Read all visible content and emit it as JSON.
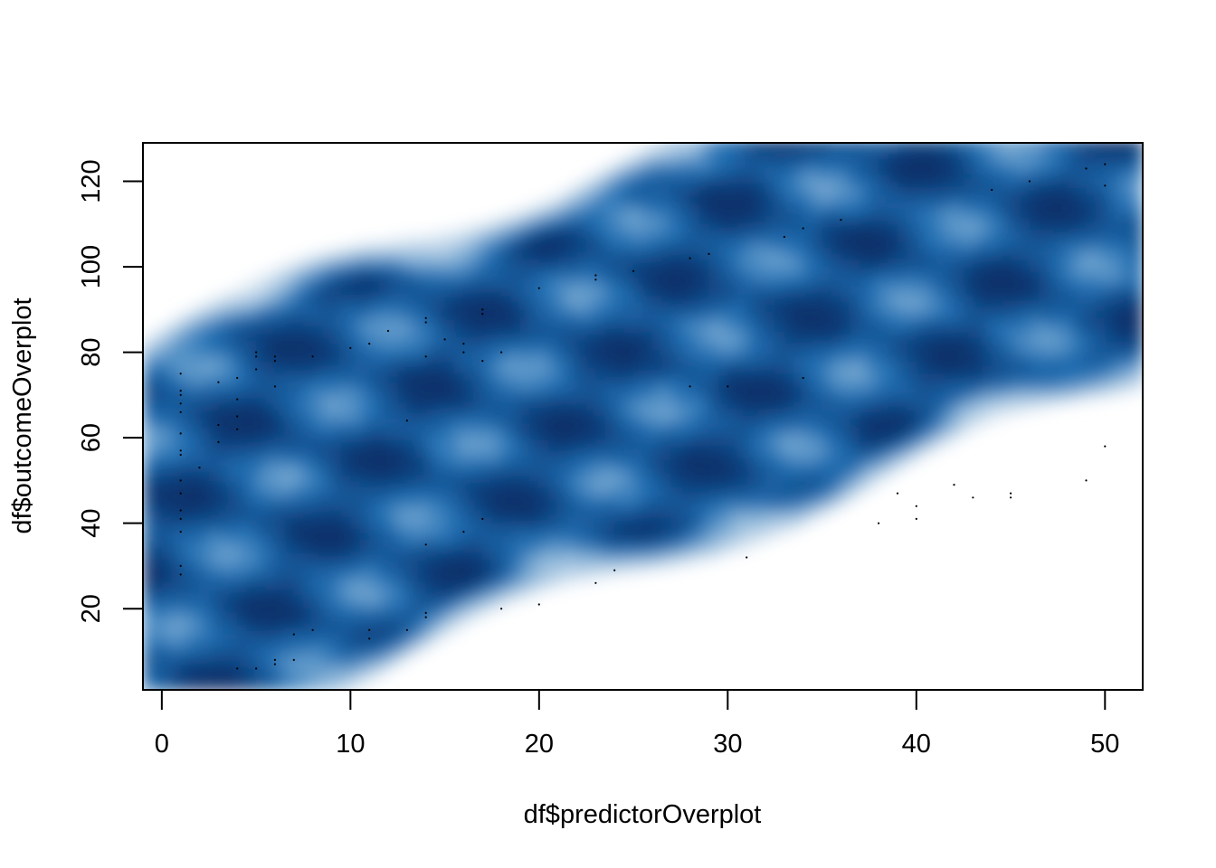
{
  "chart_data": {
    "type": "scatter",
    "subtype": "smoothed-density-scatter",
    "title": "",
    "xlabel": "df$predictorOverplot",
    "ylabel": "df$outcomeOverplot",
    "xlim": [
      -1,
      52
    ],
    "ylim": [
      1,
      129
    ],
    "x_ticks": [
      0,
      10,
      20,
      30,
      40,
      50
    ],
    "y_ticks": [
      20,
      40,
      60,
      80,
      100,
      120
    ],
    "density_color_low": "#ffffff",
    "density_color_high": "#08306b",
    "density_color_mid": "#2171b5",
    "grid": false,
    "legend": "none",
    "outlier_points": [
      [
        1,
        75
      ],
      [
        1,
        71
      ],
      [
        1,
        70
      ],
      [
        1,
        68
      ],
      [
        1,
        66
      ],
      [
        1,
        61
      ],
      [
        1,
        57
      ],
      [
        1,
        56
      ],
      [
        1,
        50
      ],
      [
        1,
        47
      ],
      [
        1,
        43
      ],
      [
        1,
        41
      ],
      [
        1,
        38
      ],
      [
        1,
        30
      ],
      [
        1,
        28
      ],
      [
        2,
        53
      ],
      [
        3,
        73
      ],
      [
        3,
        63
      ],
      [
        3,
        59
      ],
      [
        4,
        74
      ],
      [
        4,
        69
      ],
      [
        4,
        65
      ],
      [
        4,
        62
      ],
      [
        4,
        6
      ],
      [
        5,
        80
      ],
      [
        5,
        79
      ],
      [
        5,
        76
      ],
      [
        5,
        6
      ],
      [
        6,
        79
      ],
      [
        6,
        78
      ],
      [
        6,
        72
      ],
      [
        6,
        8
      ],
      [
        6,
        7
      ],
      [
        7,
        14
      ],
      [
        7,
        8
      ],
      [
        8,
        79
      ],
      [
        8,
        15
      ],
      [
        10,
        81
      ],
      [
        11,
        82
      ],
      [
        11,
        15
      ],
      [
        11,
        13
      ],
      [
        12,
        85
      ],
      [
        13,
        64
      ],
      [
        13,
        15
      ],
      [
        14,
        88
      ],
      [
        14,
        87
      ],
      [
        14,
        79
      ],
      [
        14,
        35
      ],
      [
        14,
        19
      ],
      [
        14,
        18
      ],
      [
        15,
        83
      ],
      [
        16,
        82
      ],
      [
        16,
        80
      ],
      [
        16,
        38
      ],
      [
        17,
        90
      ],
      [
        17,
        89
      ],
      [
        17,
        78
      ],
      [
        17,
        41
      ],
      [
        18,
        80
      ],
      [
        18,
        20
      ],
      [
        20,
        95
      ],
      [
        20,
        21
      ],
      [
        23,
        98
      ],
      [
        23,
        97
      ],
      [
        23,
        26
      ],
      [
        24,
        29
      ],
      [
        25,
        99
      ],
      [
        28,
        102
      ],
      [
        28,
        72
      ],
      [
        29,
        103
      ],
      [
        30,
        72
      ],
      [
        31,
        32
      ],
      [
        33,
        107
      ],
      [
        34,
        109
      ],
      [
        34,
        74
      ],
      [
        36,
        111
      ],
      [
        38,
        40
      ],
      [
        39,
        47
      ],
      [
        40,
        44
      ],
      [
        40,
        41
      ],
      [
        42,
        49
      ],
      [
        43,
        46
      ],
      [
        44,
        118
      ],
      [
        45,
        47
      ],
      [
        45,
        46
      ],
      [
        46,
        120
      ],
      [
        49,
        123
      ],
      [
        49,
        50
      ],
      [
        50,
        124
      ],
      [
        50,
        119
      ],
      [
        50,
        58
      ]
    ]
  }
}
